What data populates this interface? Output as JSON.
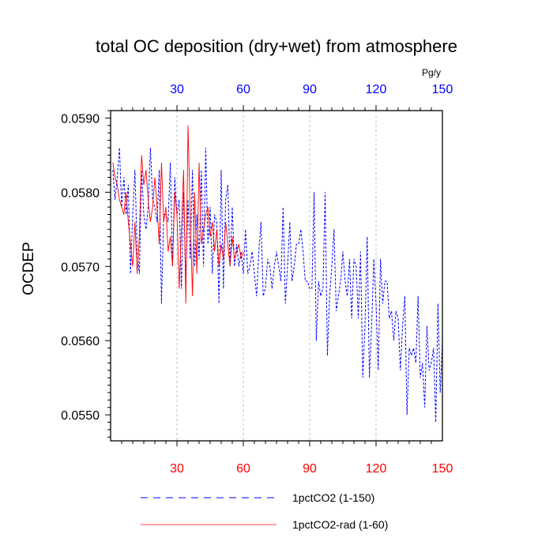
{
  "chart_data": {
    "type": "line",
    "title": "total OC deposition (dry+wet) from atmosphere",
    "ylabel": "OCDEP",
    "top_axis_unit": "Pg/y",
    "xlim": [
      0,
      150
    ],
    "ylim": [
      0.05465,
      0.0591
    ],
    "x_ticks": [
      30,
      60,
      90,
      120,
      150
    ],
    "y_ticks": [
      0.055,
      0.056,
      0.057,
      0.058,
      0.059
    ],
    "y_tick_labels": [
      "0.0550",
      "0.0560",
      "0.0570",
      "0.0580",
      "0.0590"
    ],
    "top_tick_labels": [
      "30",
      "60",
      "90",
      "120",
      "150"
    ],
    "bottom_tick_labels": [
      "30",
      "60",
      "90",
      "120",
      "150"
    ],
    "top_tick_color": "#0000ff",
    "bottom_tick_color": "#ff0000",
    "grid": "vertical dashed at x ticks",
    "legend_position": "bottom",
    "series": [
      {
        "name": "1pctCO2 (1-150)",
        "color": "#0000ff",
        "style": "dashed",
        "x_start": 1,
        "values": [
          0.0583,
          0.0579,
          0.0582,
          0.0586,
          0.0578,
          0.0582,
          0.0577,
          0.0581,
          0.0569,
          0.0577,
          0.0583,
          0.0572,
          0.0569,
          0.0583,
          0.0577,
          0.0575,
          0.0578,
          0.0586,
          0.0579,
          0.0578,
          0.0576,
          0.0583,
          0.0565,
          0.0577,
          0.0577,
          0.0576,
          0.0584,
          0.057,
          0.0582,
          0.0577,
          0.0579,
          0.0567,
          0.058,
          0.0568,
          0.0579,
          0.0571,
          0.0583,
          0.057,
          0.0577,
          0.0571,
          0.0583,
          0.057,
          0.0586,
          0.0573,
          0.0578,
          0.0569,
          0.0577,
          0.0576,
          0.0565,
          0.0583,
          0.0567,
          0.0579,
          0.0581,
          0.057,
          0.0578,
          0.057,
          0.0573,
          0.057,
          0.0572,
          0.0569,
          0.0575,
          0.0569,
          0.057,
          0.0572,
          0.0569,
          0.0566,
          0.0572,
          0.0576,
          0.0566,
          0.0567,
          0.0571,
          0.057,
          0.0567,
          0.057,
          0.0572,
          0.057,
          0.0568,
          0.0578,
          0.0565,
          0.057,
          0.0576,
          0.0568,
          0.057,
          0.0573,
          0.0573,
          0.0575,
          0.0572,
          0.0568,
          0.0568,
          0.0567,
          0.0567,
          0.058,
          0.056,
          0.0568,
          0.0566,
          0.0567,
          0.058,
          0.0558,
          0.0566,
          0.057,
          0.0575,
          0.0564,
          0.0566,
          0.0568,
          0.0572,
          0.0568,
          0.0566,
          0.0571,
          0.0563,
          0.0571,
          0.057,
          0.0563,
          0.0572,
          0.0555,
          0.0562,
          0.0574,
          0.0555,
          0.0562,
          0.0571,
          0.0565,
          0.0556,
          0.0571,
          0.0565,
          0.0568,
          0.0568,
          0.0563,
          0.0564,
          0.056,
          0.0564,
          0.0563,
          0.0556,
          0.0562,
          0.0566,
          0.055,
          0.0559,
          0.0558,
          0.0559,
          0.0557,
          0.0566,
          0.0555,
          0.0557,
          0.0551,
          0.0562,
          0.0556,
          0.0557,
          0.0559,
          0.0549,
          0.0565,
          0.0553,
          0.056
        ]
      },
      {
        "name": "1pctCO2-rad (1-60)",
        "color": "#ff0000",
        "style": "solid",
        "x_start": 1,
        "values": [
          0.0584,
          0.0582,
          0.0581,
          0.0579,
          0.0578,
          0.0577,
          0.058,
          0.0576,
          0.0573,
          0.057,
          0.0576,
          0.0569,
          0.0574,
          0.0585,
          0.0581,
          0.0583,
          0.0579,
          0.0576,
          0.0578,
          0.0582,
          0.0578,
          0.0573,
          0.0584,
          0.0576,
          0.0578,
          0.0572,
          0.0574,
          0.057,
          0.058,
          0.0577,
          0.0567,
          0.0575,
          0.0583,
          0.0565,
          0.0589,
          0.0577,
          0.0566,
          0.058,
          0.0569,
          0.0584,
          0.0573,
          0.0575,
          0.0577,
          0.0578,
          0.0574,
          0.0576,
          0.0572,
          0.0575,
          0.057,
          0.0573,
          0.0571,
          0.0576,
          0.0573,
          0.057,
          0.0574,
          0.0571,
          0.0572,
          0.0573,
          0.0571,
          0.0572
        ]
      }
    ]
  }
}
